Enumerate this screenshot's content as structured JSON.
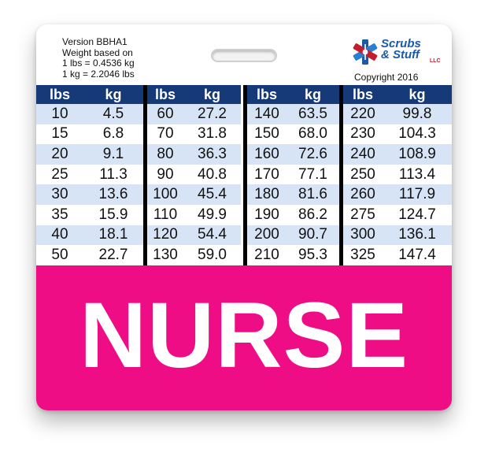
{
  "header": {
    "info_lines": [
      "Version BBHA1",
      "Weight based on",
      "1 lbs = 0.4536 kg",
      "1 kg = 2.2046 lbs"
    ],
    "logo_text": [
      "Scrubs",
      "& Stuff"
    ],
    "logo_suffix": "LLC",
    "copyright": "Copyright 2016"
  },
  "table": {
    "col_headers": [
      "lbs",
      "kg"
    ],
    "columns": [
      [
        [
          "10",
          "4.5"
        ],
        [
          "15",
          "6.8"
        ],
        [
          "20",
          "9.1"
        ],
        [
          "25",
          "11.3"
        ],
        [
          "30",
          "13.6"
        ],
        [
          "35",
          "15.9"
        ],
        [
          "40",
          "18.1"
        ],
        [
          "50",
          "22.7"
        ]
      ],
      [
        [
          "60",
          "27.2"
        ],
        [
          "70",
          "31.8"
        ],
        [
          "80",
          "36.3"
        ],
        [
          "90",
          "40.8"
        ],
        [
          "100",
          "45.4"
        ],
        [
          "110",
          "49.9"
        ],
        [
          "120",
          "54.4"
        ],
        [
          "130",
          "59.0"
        ]
      ],
      [
        [
          "140",
          "63.5"
        ],
        [
          "150",
          "68.0"
        ],
        [
          "160",
          "72.6"
        ],
        [
          "170",
          "77.1"
        ],
        [
          "180",
          "81.6"
        ],
        [
          "190",
          "86.2"
        ],
        [
          "200",
          "90.7"
        ],
        [
          "210",
          "95.3"
        ]
      ],
      [
        [
          "220",
          "99.8"
        ],
        [
          "230",
          "104.3"
        ],
        [
          "240",
          "108.9"
        ],
        [
          "250",
          "113.4"
        ],
        [
          "260",
          "117.9"
        ],
        [
          "275",
          "124.7"
        ],
        [
          "300",
          "136.1"
        ],
        [
          "325",
          "147.4"
        ]
      ]
    ]
  },
  "banner": {
    "text": "NURSE"
  },
  "colors": {
    "navy": "#163a78",
    "row_alt": "#d7e4f6",
    "pink": "#ee0d85",
    "logo_blue": "#1a5aa8",
    "logo_red": "#c21e2e"
  },
  "icons": {
    "logo": "star-of-life-icon",
    "slot": "badge-slot-icon"
  }
}
